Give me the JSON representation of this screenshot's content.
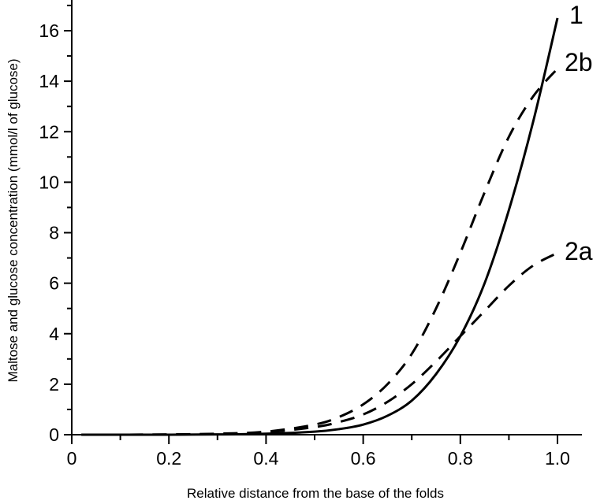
{
  "chart_data": {
    "type": "line",
    "title": "",
    "xlabel": "Relative distance from the base of the folds",
    "ylabel": "Maltose and glucose concentration (mmol/l of glucose)",
    "xlim": [
      0,
      1.05
    ],
    "ylim": [
      0,
      17
    ],
    "x_ticks": [
      0,
      0.2,
      0.4,
      0.6,
      0.8,
      1.0
    ],
    "x_tick_labels": [
      "0",
      "0.2",
      "0.4",
      "0.6",
      "0.8",
      "1.0"
    ],
    "y_ticks": [
      0,
      2,
      4,
      6,
      8,
      10,
      12,
      14,
      16
    ],
    "y_tick_labels": [
      "0",
      "2",
      "4",
      "6",
      "8",
      "10",
      "12",
      "14",
      "16"
    ],
    "grid": false,
    "legend": "inline labels at curve ends",
    "series": [
      {
        "name": "1",
        "style": "solid",
        "x": [
          0.02,
          0.1,
          0.2,
          0.3,
          0.4,
          0.5,
          0.55,
          0.6,
          0.65,
          0.7,
          0.75,
          0.8,
          0.85,
          0.9,
          0.95,
          1.0
        ],
        "y": [
          0.0,
          0.0,
          0.0,
          0.01,
          0.04,
          0.12,
          0.22,
          0.4,
          0.75,
          1.35,
          2.4,
          3.9,
          6.0,
          8.9,
          12.4,
          16.5
        ]
      },
      {
        "name": "2a",
        "style": "dashed",
        "x": [
          0.02,
          0.1,
          0.2,
          0.3,
          0.4,
          0.5,
          0.55,
          0.6,
          0.65,
          0.7,
          0.75,
          0.8,
          0.85,
          0.9,
          0.95,
          1.0
        ],
        "y": [
          0.0,
          0.0,
          0.01,
          0.03,
          0.1,
          0.3,
          0.5,
          0.8,
          1.3,
          2.0,
          2.9,
          3.9,
          4.9,
          5.9,
          6.7,
          7.2
        ]
      },
      {
        "name": "2b",
        "style": "dashed",
        "x": [
          0.02,
          0.1,
          0.2,
          0.3,
          0.4,
          0.5,
          0.55,
          0.6,
          0.65,
          0.7,
          0.75,
          0.8,
          0.85,
          0.9,
          0.95,
          1.0
        ],
        "y": [
          0.0,
          0.0,
          0.01,
          0.04,
          0.12,
          0.4,
          0.7,
          1.2,
          2.0,
          3.2,
          5.0,
          7.2,
          9.6,
          11.8,
          13.4,
          14.5
        ]
      }
    ],
    "annotations": [
      {
        "text": "1",
        "near_series": "1"
      },
      {
        "text": "2b",
        "near_series": "2b"
      },
      {
        "text": "2a",
        "near_series": "2a"
      }
    ]
  }
}
